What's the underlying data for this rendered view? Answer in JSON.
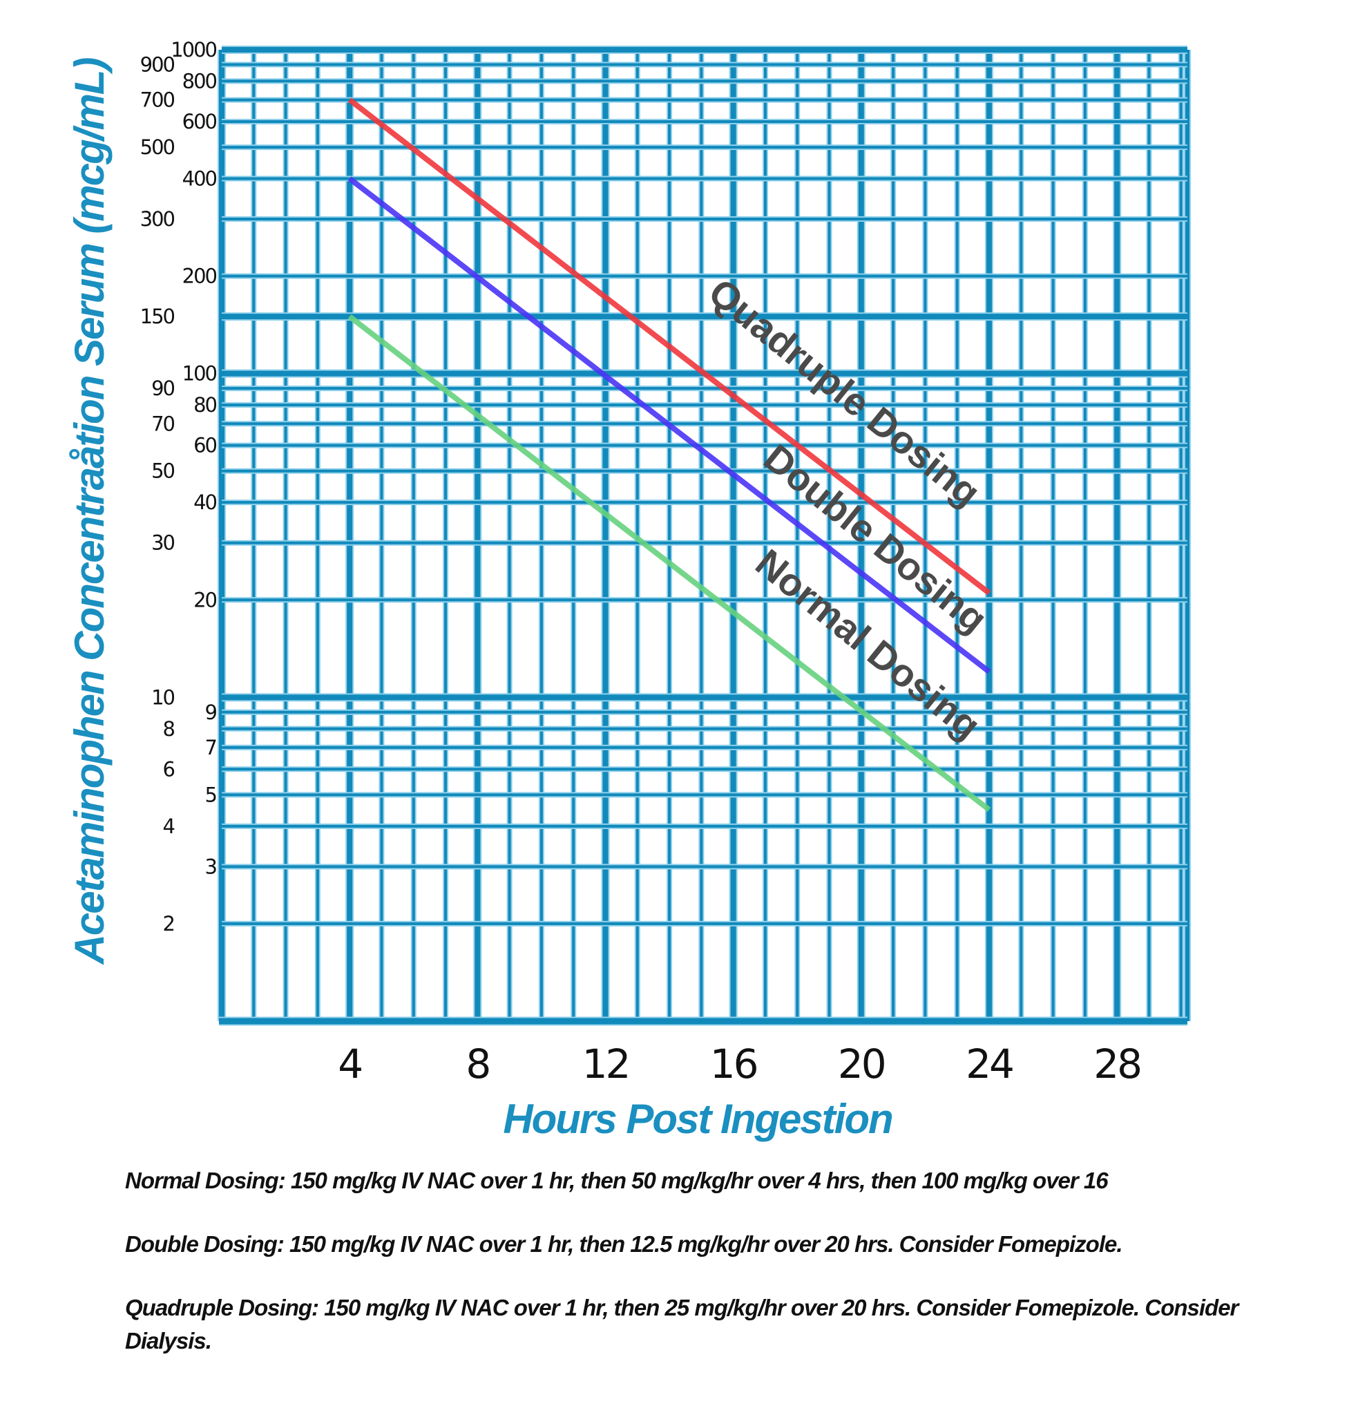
{
  "chart_data": {
    "type": "line",
    "title": "",
    "xlabel": "Hours Post Ingestion",
    "ylabel": "Acetaminophen Concentraåtion Serum (mcg/mL)",
    "xlim": [
      0,
      30.2
    ],
    "ylim": [
      1,
      1000
    ],
    "yscale": "log",
    "grid": true,
    "x_ticks": [
      "4",
      "8",
      "12",
      "16",
      "20",
      "24",
      "28"
    ],
    "x_tick_values": [
      4,
      8,
      12,
      16,
      20,
      24,
      28
    ],
    "y_ticks": [
      "1000",
      "900",
      "800",
      "700",
      "600",
      "500",
      "400",
      "300",
      "200",
      "150",
      "100",
      "90",
      "80",
      "70",
      "60",
      "50",
      "40",
      "30",
      "20",
      "10",
      "9",
      "8",
      "7",
      "6",
      "5",
      "4",
      "3",
      "2"
    ],
    "y_tick_values": [
      1000,
      900,
      800,
      700,
      600,
      500,
      400,
      300,
      200,
      150,
      100,
      90,
      80,
      70,
      60,
      50,
      40,
      30,
      20,
      10,
      9,
      8,
      7,
      6,
      5,
      4,
      3,
      2
    ],
    "series": [
      {
        "name": "Quadruple Dosing",
        "color": "#f0363c",
        "x": [
          4,
          24
        ],
        "values": [
          700,
          21
        ]
      },
      {
        "name": "Double Dosing",
        "color": "#4a34f5",
        "x": [
          4,
          24
        ],
        "values": [
          400,
          12
        ]
      },
      {
        "name": "Normal Dosing",
        "color": "#66d17e",
        "x": [
          4,
          24
        ],
        "values": [
          150,
          4.5
        ]
      }
    ],
    "grid_color": "#1189bb"
  },
  "notes": [
    "Normal Dosing: 150 mg/kg IV NAC over 1 hr, then 50 mg/kg/hr over 4 hrs, then 100 mg/kg over 16",
    "Double Dosing: 150 mg/kg IV NAC over 1 hr, then 12.5 mg/kg/hr over 20 hrs. Consider Fomepizole.",
    "Quadruple Dosing: 150 mg/kg IV NAC over 1 hr, then 25 mg/kg/hr over 20 hrs. Consider Fomepizole. Consider Dialysis."
  ]
}
